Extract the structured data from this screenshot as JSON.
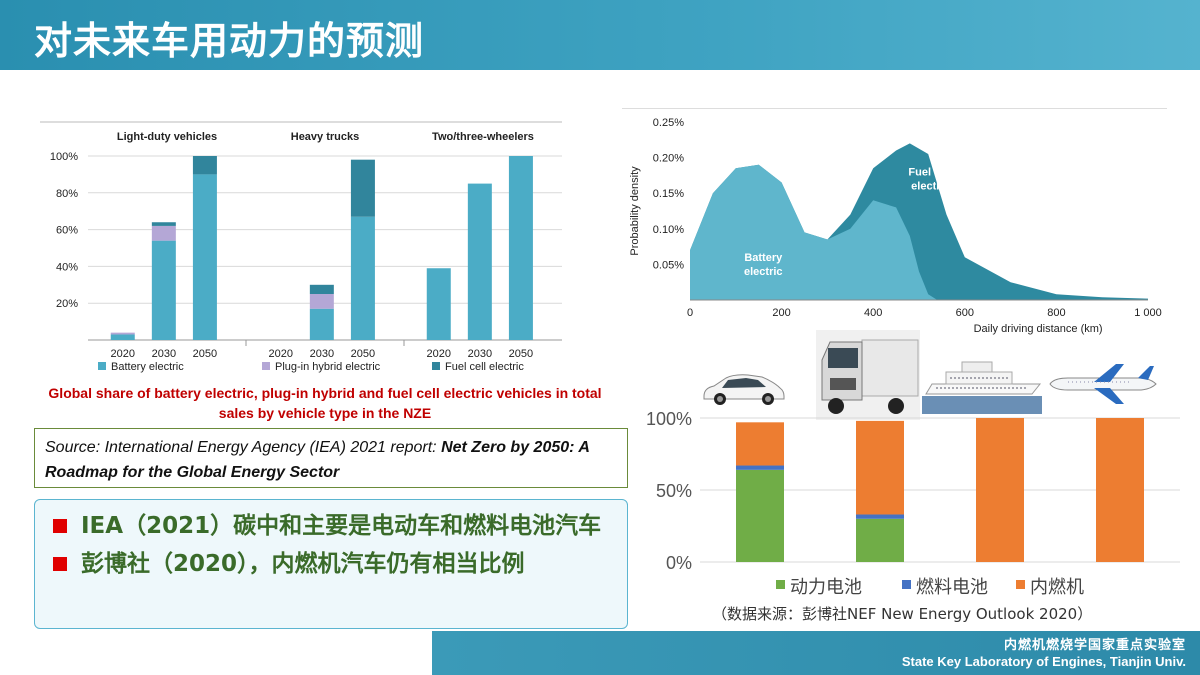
{
  "slide": {
    "title": "对未来车用动力的预测",
    "footer_cn": "内燃机燃烧学国家重点实验室",
    "footer_en": "State Key Laboratory of Engines, Tianjin Univ.",
    "colors": {
      "title_bar": "#3fa3c2",
      "bullet_text": "#3a6b2a",
      "caption_red": "#c00000"
    }
  },
  "left_chart": {
    "caption": "Global share of battery electric, plug-in hybrid and fuel cell electric vehicles in total sales by vehicle type in the NZE"
  },
  "source": {
    "prefix": "Source: International Energy Agency (IEA) 2021 report: ",
    "title": "Net Zero by 2050: A Roadmap for the Global Energy Sector"
  },
  "bullets": [
    "IEA（2021）碳中和主要是电动车和燃料电池汽车",
    "彭博社（2020），内燃机汽车仍有相当比例"
  ],
  "right_bottom": {
    "source_note": "（数据来源：彭博社NEF New Energy Outlook 2020）",
    "vehicle_icons": [
      "car-icon",
      "truck-icon",
      "ship-icon",
      "airplane-icon"
    ]
  },
  "chart_data": [
    {
      "type": "bar",
      "stacked": true,
      "groups": [
        "Light-duty vehicles",
        "Heavy trucks",
        "Two/three-wheelers"
      ],
      "categories": [
        "2020",
        "2030",
        "2050"
      ],
      "yticks": [
        "20%",
        "40%",
        "60%",
        "80%",
        "100%"
      ],
      "ylim": [
        0,
        100
      ],
      "series": [
        {
          "name": "Battery electric",
          "color": "#4bacc6",
          "values": [
            [
              3,
              54,
              90
            ],
            [
              0,
              17,
              67
            ],
            [
              39,
              85,
              100
            ]
          ]
        },
        {
          "name": "Plug-in hybrid electric",
          "color": "#b4a7d6",
          "values": [
            [
              1,
              8,
              0
            ],
            [
              0,
              8,
              0
            ],
            [
              0,
              0,
              0
            ]
          ]
        },
        {
          "name": "Fuel cell electric",
          "color": "#31859c",
          "values": [
            [
              0,
              2,
              10
            ],
            [
              0,
              5,
              31
            ],
            [
              0,
              0,
              0
            ]
          ]
        }
      ],
      "legend_position": "bottom"
    },
    {
      "type": "area",
      "ylabel": "Probability density",
      "xlabel": "Daily driving distance (km)",
      "xticks": [
        "0",
        "200",
        "400",
        "600",
        "800",
        "1 000"
      ],
      "yticks": [
        "0.05%",
        "0.10%",
        "0.15%",
        "0.20%",
        "0.25%"
      ],
      "xlim": [
        0,
        1000
      ],
      "ylim": [
        0,
        0.25
      ],
      "series": [
        {
          "name": "Fuel cell electric",
          "color": "#2e8aa0",
          "x": [
            0,
            50,
            100,
            150,
            200,
            250,
            300,
            350,
            400,
            450,
            480,
            520,
            560,
            600,
            700,
            800,
            900,
            1000
          ],
          "y": [
            0.07,
            0.15,
            0.185,
            0.19,
            0.165,
            0.095,
            0.085,
            0.12,
            0.185,
            0.21,
            0.22,
            0.205,
            0.12,
            0.06,
            0.025,
            0.008,
            0.004,
            0.002
          ]
        },
        {
          "name": "Battery electric",
          "color": "#5fb6cc",
          "x": [
            0,
            50,
            100,
            150,
            200,
            250,
            300,
            350,
            400,
            450,
            480,
            500,
            520,
            540
          ],
          "y": [
            0.07,
            0.15,
            0.185,
            0.19,
            0.165,
            0.095,
            0.085,
            0.1,
            0.14,
            0.13,
            0.09,
            0.04,
            0.008,
            0.0
          ]
        }
      ],
      "annotations": [
        "Fuel cell electric",
        "Battery electric"
      ]
    },
    {
      "type": "bar",
      "stacked": true,
      "categories": [
        "car",
        "truck",
        "ship",
        "airplane"
      ],
      "yticks": [
        "0%",
        "50%",
        "100%"
      ],
      "ylim": [
        0,
        100
      ],
      "series": [
        {
          "name": "动力电池",
          "color": "#70ad47",
          "values": [
            64,
            30,
            0,
            0
          ]
        },
        {
          "name": "燃料电池",
          "color": "#4472c4",
          "values": [
            3,
            3,
            0,
            0
          ]
        },
        {
          "name": "内燃机",
          "color": "#ed7d31",
          "values": [
            30,
            65,
            100,
            100
          ]
        }
      ],
      "legend_position": "bottom"
    }
  ]
}
